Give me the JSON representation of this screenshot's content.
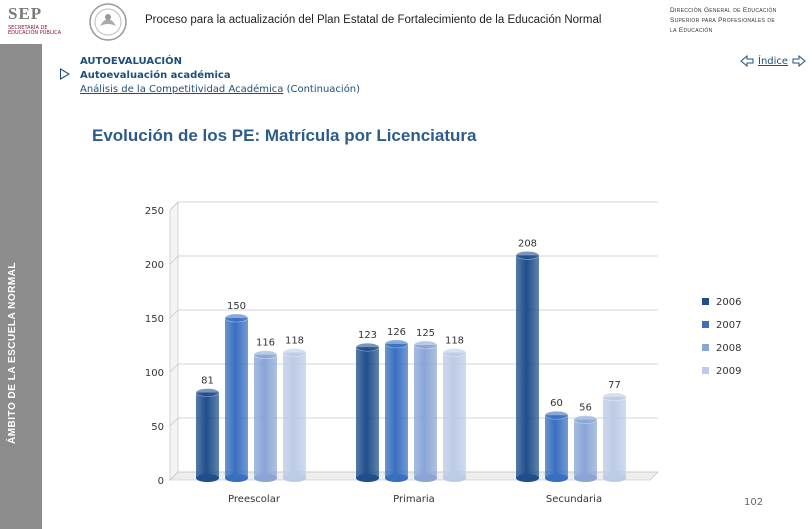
{
  "header": {
    "logo_text": "SEP",
    "logo_subtitle": "SECRETARÍA DE EDUCACIÓN PÚBLICA",
    "title": "Proceso para la actualización del Plan Estatal de Fortalecimiento de la Educación Normal",
    "right_line1": "Dirección General de Educación",
    "right_line2": "Superior para Profesionales de",
    "right_line3": "la Educación"
  },
  "sidebar": {
    "label": "ÁMBITO DE LA ESCUELA NORMAL"
  },
  "breadcrumb": {
    "level1": "AUTOEVALUACIÓN",
    "level2": "Autoevaluación académica",
    "level3_link": "Análisis de la Competitividad Académica",
    "level3_suffix": " (Continuación)"
  },
  "nav": {
    "index_label": "Índice"
  },
  "slide_title": "Evolución de los PE: Matrícula por Licenciatura",
  "page_number": "102",
  "colors": {
    "accent": "#1f4e79",
    "sidebar": "#8c8c8c",
    "s2006": "#1f4e8c",
    "s2007": "#3a6fc0",
    "s2008": "#8aa6d6",
    "s2009": "#bccbe6"
  },
  "chart_data": {
    "type": "bar",
    "categories": [
      "Preescolar",
      "Primaria",
      "Secundaria"
    ],
    "series": [
      {
        "name": "2006",
        "values": [
          81,
          123,
          208
        ]
      },
      {
        "name": "2007",
        "values": [
          150,
          126,
          60
        ]
      },
      {
        "name": "2008",
        "values": [
          116,
          125,
          56
        ]
      },
      {
        "name": "2009",
        "values": [
          118,
          118,
          77
        ]
      }
    ],
    "ylim": [
      0,
      250
    ],
    "yticks": [
      0,
      50,
      100,
      150,
      200,
      250
    ],
    "grid": true,
    "legend": "right",
    "title": "",
    "xlabel": "",
    "ylabel": ""
  }
}
